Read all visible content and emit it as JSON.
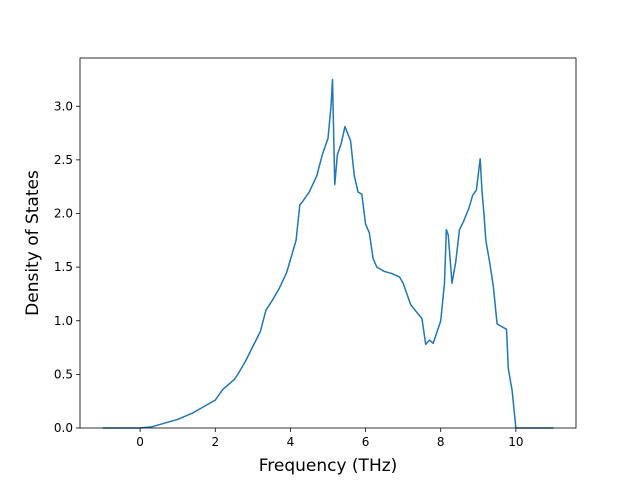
{
  "chart_data": {
    "type": "line",
    "title": "",
    "xlabel": "Frequency (THz)",
    "ylabel": "Density of States",
    "xlim": [
      -1.6,
      11.6
    ],
    "ylim": [
      0,
      3.45
    ],
    "xticks": [
      0,
      2,
      4,
      6,
      8,
      10
    ],
    "yticks": [
      0.0,
      0.5,
      1.0,
      1.5,
      2.0,
      2.5,
      3.0
    ],
    "xtick_labels": [
      "0",
      "2",
      "4",
      "6",
      "8",
      "10"
    ],
    "ytick_labels": [
      "0.0",
      "0.5",
      "1.0",
      "1.5",
      "2.0",
      "2.5",
      "3.0"
    ],
    "grid": false,
    "legend": "none",
    "line_color": "#1f77b4",
    "series": [
      {
        "x": [
          -1.0,
          -0.5,
          0.0,
          0.3,
          0.6,
          1.0,
          1.4,
          1.8,
          2.0,
          2.2,
          2.5,
          2.6,
          2.8,
          3.0,
          3.2,
          3.35,
          3.5,
          3.7,
          3.9,
          4.0,
          4.15,
          4.25,
          4.3,
          4.5,
          4.7,
          4.85,
          5.0,
          5.08,
          5.12,
          5.18,
          5.25,
          5.35,
          5.45,
          5.6,
          5.7,
          5.8,
          5.9,
          6.0,
          6.1,
          6.2,
          6.3,
          6.5,
          6.7,
          6.9,
          7.0,
          7.2,
          7.5,
          7.6,
          7.7,
          7.8,
          8.0,
          8.1,
          8.15,
          8.2,
          8.3,
          8.4,
          8.5,
          8.6,
          8.75,
          8.85,
          8.95,
          9.05,
          9.1,
          9.15,
          9.2,
          9.3,
          9.4,
          9.5,
          9.6,
          9.75,
          9.8,
          9.9,
          10.0,
          10.1,
          10.5,
          11.0
        ],
        "y": [
          0.0,
          0.0,
          0.0,
          0.01,
          0.04,
          0.08,
          0.14,
          0.22,
          0.26,
          0.36,
          0.45,
          0.5,
          0.62,
          0.76,
          0.9,
          1.1,
          1.18,
          1.3,
          1.45,
          1.57,
          1.75,
          2.08,
          2.1,
          2.2,
          2.35,
          2.55,
          2.7,
          3.0,
          3.25,
          2.27,
          2.55,
          2.65,
          2.81,
          2.68,
          2.35,
          2.2,
          2.18,
          1.9,
          1.82,
          1.58,
          1.5,
          1.46,
          1.44,
          1.41,
          1.35,
          1.15,
          1.02,
          0.78,
          0.82,
          0.79,
          1.0,
          1.35,
          1.85,
          1.8,
          1.35,
          1.55,
          1.85,
          1.92,
          2.05,
          2.17,
          2.22,
          2.51,
          2.2,
          2.0,
          1.75,
          1.55,
          1.32,
          0.97,
          0.95,
          0.92,
          0.55,
          0.35,
          0.0,
          0.0,
          0.0,
          0.0
        ]
      }
    ]
  }
}
